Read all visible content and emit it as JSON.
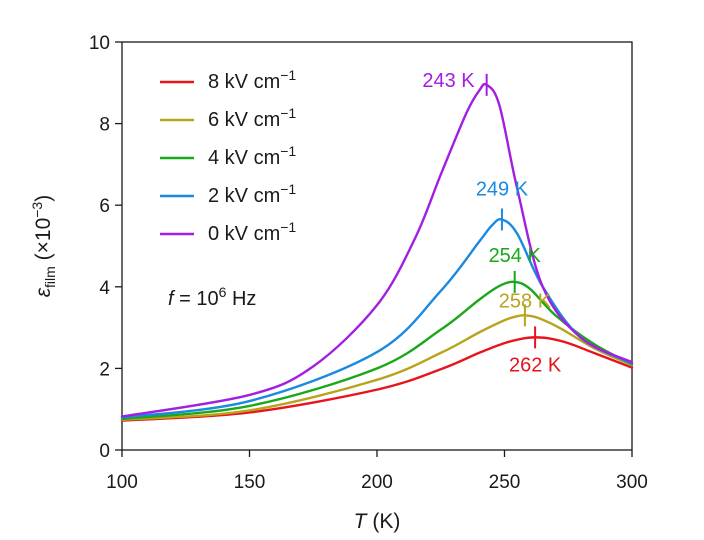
{
  "chart_data": {
    "type": "line",
    "title": "",
    "xlabel": {
      "symbol": "T",
      "rest": " (K)"
    },
    "ylabel": {
      "base": "ε",
      "sub": "film",
      "rest_open": " (×10",
      "sup": "−3",
      "rest_close": ")"
    },
    "xlim": [
      100,
      300
    ],
    "ylim": [
      0,
      10
    ],
    "xticks": [
      "100",
      "150",
      "200",
      "250",
      "300"
    ],
    "yticks": [
      "0",
      "2",
      "4",
      "6",
      "8",
      "10"
    ],
    "grid": false,
    "legend_position": "top-left",
    "annotation": {
      "symbol": "f",
      "eq": " = 10",
      "sup": "6",
      "unit": " Hz"
    },
    "series": [
      {
        "name": "8 kV cm−1",
        "field": "8 kV cm",
        "field_sup": "−1",
        "color": "#e8141c",
        "peak_T": 262,
        "peak_label": "262 K",
        "x": [
          100,
          150,
          200,
          225,
          240,
          250,
          258,
          262,
          267,
          275,
          285,
          300
        ],
        "values": [
          0.72,
          0.92,
          1.48,
          1.98,
          2.38,
          2.62,
          2.74,
          2.76,
          2.74,
          2.62,
          2.38,
          2.02
        ]
      },
      {
        "name": "6 kV cm−1",
        "field": "6 kV cm",
        "field_sup": "−1",
        "color": "#b8a41c",
        "peak_T": 258,
        "peak_label": "258 K",
        "x": [
          100,
          150,
          200,
          225,
          240,
          250,
          255,
          258,
          263,
          272,
          285,
          300
        ],
        "values": [
          0.74,
          0.97,
          1.72,
          2.38,
          2.88,
          3.18,
          3.28,
          3.3,
          3.24,
          2.98,
          2.5,
          2.08
        ]
      },
      {
        "name": "4 kV cm−1",
        "field": "4 kV cm",
        "field_sup": "−1",
        "color": "#1aa81a",
        "peak_T": 254,
        "peak_label": "254 K",
        "x": [
          100,
          150,
          200,
          225,
          240,
          248,
          254,
          260,
          270,
          285,
          300
        ],
        "values": [
          0.76,
          1.08,
          2.0,
          2.95,
          3.68,
          4.02,
          4.12,
          3.95,
          3.3,
          2.6,
          2.1
        ]
      },
      {
        "name": "2 kV cm−1",
        "field": "2 kV cm",
        "field_sup": "−1",
        "color": "#1a8ae0",
        "peak_T": 249,
        "peak_label": "249 K",
        "x": [
          100,
          150,
          200,
          225,
          240,
          245,
          249,
          255,
          265,
          280,
          300
        ],
        "values": [
          0.8,
          1.2,
          2.4,
          3.9,
          5.1,
          5.5,
          5.65,
          5.3,
          4.0,
          2.75,
          2.12
        ]
      },
      {
        "name": "0 kV cm−1",
        "field": "0 kV cm",
        "field_sup": "−1",
        "color": "#a21ee0",
        "peak_T": 243,
        "peak_label": "243 K",
        "x": [
          100,
          150,
          175,
          200,
          215,
          225,
          235,
          240,
          243,
          248,
          255,
          265,
          280,
          300
        ],
        "values": [
          0.82,
          1.35,
          2.05,
          3.55,
          5.2,
          6.75,
          8.25,
          8.8,
          8.95,
          8.45,
          6.4,
          4.0,
          2.75,
          2.15
        ]
      }
    ]
  }
}
